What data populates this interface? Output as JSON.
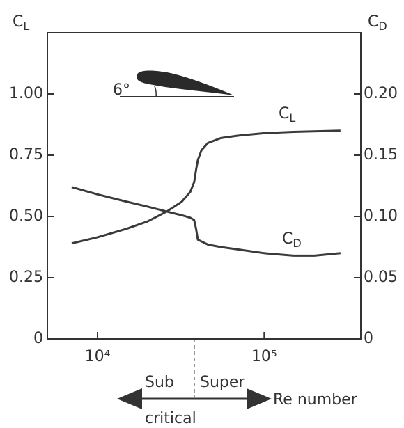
{
  "chart_data": {
    "type": "line",
    "x_scale": "log",
    "y_label": {
      "text": "C",
      "sub": "L"
    },
    "y2_label": {
      "text": "C",
      "sub": "D"
    },
    "x_label": "Re number",
    "annotations": {
      "angle": "6°",
      "sub": "Sub",
      "super": "Super",
      "critical": "critical"
    },
    "xlim": [
      5000,
      380000
    ],
    "xticks": [
      {
        "value": 10000,
        "label": "10⁴"
      },
      {
        "value": 100000,
        "label": "10⁵"
      }
    ],
    "ylim": [
      0,
      1.25
    ],
    "yticks": [
      0,
      0.25,
      {
        "value": 0.5,
        "label": "0.50"
      },
      0.75,
      {
        "value": 1,
        "label": "1.00"
      }
    ],
    "y2lim": [
      0,
      0.25
    ],
    "y2ticks": [
      0,
      0.05,
      {
        "value": 0.1,
        "label": "0.10"
      },
      0.15,
      {
        "value": 0.2,
        "label": "0.20"
      }
    ],
    "vline": 38000,
    "series": [
      {
        "name": {
          "text": "C",
          "sub": "L"
        },
        "color": "#3a3a3a",
        "x": [
          7000,
          10000,
          15000,
          20000,
          26000,
          32000,
          36000,
          38000,
          39000,
          40000,
          42000,
          46000,
          55000,
          70000,
          100000,
          150000,
          287000
        ],
        "values": [
          0.39,
          0.415,
          0.45,
          0.48,
          0.52,
          0.56,
          0.6,
          0.64,
          0.69,
          0.73,
          0.77,
          0.8,
          0.82,
          0.83,
          0.84,
          0.845,
          0.85
        ]
      },
      {
        "name": {
          "text": "C",
          "sub": "D"
        },
        "color": "#3a3a3a",
        "axis": "y2",
        "x": [
          7000,
          10000,
          15000,
          20000,
          26000,
          32000,
          36000,
          38000,
          39000,
          40000,
          46000,
          55000,
          70000,
          100000,
          150000,
          200000,
          287000
        ],
        "values": [
          0.124,
          0.118,
          0.112,
          0.108,
          0.104,
          0.101,
          0.099,
          0.097,
          0.09,
          0.081,
          0.077,
          0.075,
          0.073,
          0.07,
          0.068,
          0.068,
          0.07
        ]
      }
    ]
  }
}
